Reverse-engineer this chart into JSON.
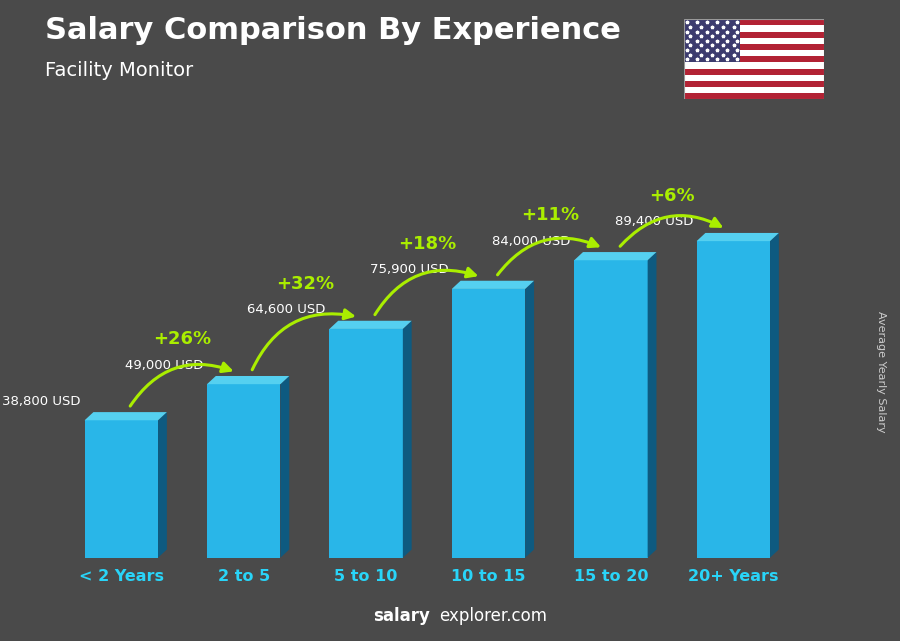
{
  "title": "Salary Comparison By Experience",
  "subtitle": "Facility Monitor",
  "categories": [
    "< 2 Years",
    "2 to 5",
    "5 to 10",
    "10 to 15",
    "15 to 20",
    "20+ Years"
  ],
  "values": [
    38800,
    49000,
    64600,
    75900,
    84000,
    89400
  ],
  "value_labels": [
    "38,800 USD",
    "49,000 USD",
    "64,600 USD",
    "75,900 USD",
    "84,000 USD",
    "89,400 USD"
  ],
  "pct_changes": [
    "+26%",
    "+32%",
    "+18%",
    "+11%",
    "+6%"
  ],
  "bar_color_body": "#29b6e8",
  "bar_color_left": "#1a8ab8",
  "bar_color_top": "#55d0f0",
  "bar_color_right": "#0e5a80",
  "bg_color": "#4a4a4a",
  "title_color": "#ffffff",
  "subtitle_color": "#ffffff",
  "value_label_color": "#ffffff",
  "pct_color": "#aaee00",
  "xlabel_color": "#29d4f8",
  "watermark_bold": "salary",
  "watermark_normal": "explorer.com",
  "side_label": "Average Yearly Salary",
  "ylim": [
    0,
    105000
  ],
  "bar_width": 0.6,
  "depth_ratio": 0.12
}
